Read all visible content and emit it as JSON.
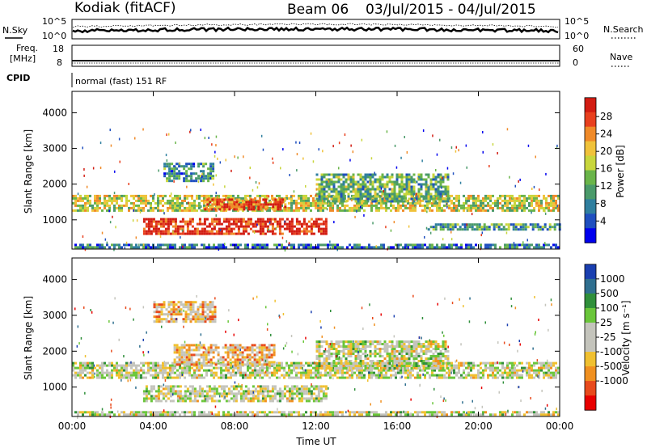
{
  "header": {
    "title": "Kodiak (fitACF)",
    "beam": "Beam 06",
    "date_range": "03/Jul/2015 - 04/Jul/2015"
  },
  "panels": {
    "nsky": {
      "label": "N.Sky",
      "ticks": [
        "10^5",
        "10^0"
      ]
    },
    "nsearch": {
      "label": "N.Search",
      "ticks": [
        "10^5",
        "10^0"
      ]
    },
    "freq": {
      "label_line1": "Freq.",
      "label_line2": "[MHz]",
      "ticks": [
        "18",
        "8"
      ]
    },
    "nave": {
      "label": "Nave",
      "ticks": [
        "60",
        "0"
      ]
    },
    "cpid": {
      "label": "CPID",
      "value": "normal (fast) 151 RF"
    }
  },
  "chart_data": [
    {
      "type": "heatmap",
      "name": "power",
      "title": "",
      "xlabel": "",
      "ylabel": "Slant Range [km]",
      "xticks": [
        "00:00",
        "04:00",
        "08:00",
        "12:00",
        "16:00",
        "20:00",
        "00:00"
      ],
      "xlim_hours": [
        0,
        24
      ],
      "yticks": [
        1000,
        2000,
        3000,
        4000
      ],
      "ylim": [
        180,
        4600
      ],
      "colorbar_label": "Power [dB]",
      "colorbar_ticks": [
        4,
        8,
        12,
        16,
        20,
        24,
        28
      ],
      "colorbar_colors": [
        "#0000ee",
        "#1f4fbf",
        "#2f7f9f",
        "#4a9a6a",
        "#6ab54a",
        "#c8d63c",
        "#f0c23a",
        "#f08a28",
        "#e8401e",
        "#d21c12"
      ],
      "bands": [
        {
          "x": [
            0,
            24
          ],
          "y": [
            1250,
            1700
          ],
          "level": 0.55
        },
        {
          "x": [
            6.5,
            10.5
          ],
          "y": [
            1300,
            1600
          ],
          "level": 0.85
        },
        {
          "x": [
            3.5,
            12.5
          ],
          "y": [
            600,
            1050
          ],
          "level": 0.95
        },
        {
          "x": [
            12,
            18.5
          ],
          "y": [
            1500,
            2300
          ],
          "level": 0.4
        },
        {
          "x": [
            17.5,
            24
          ],
          "y": [
            750,
            900
          ],
          "level": 0.35
        },
        {
          "x": [
            4.5,
            7
          ],
          "y": [
            2100,
            2600
          ],
          "level": 0.3
        },
        {
          "x": [
            0,
            24
          ],
          "y": [
            200,
            330
          ],
          "level": 0.25
        }
      ]
    },
    {
      "type": "heatmap",
      "name": "velocity",
      "title": "",
      "xlabel": "Time UT",
      "ylabel": "Slant Range [km]",
      "xticks": [
        "00:00",
        "04:00",
        "08:00",
        "12:00",
        "16:00",
        "20:00",
        "00:00"
      ],
      "xlim_hours": [
        0,
        24
      ],
      "yticks": [
        1000,
        2000,
        3000,
        4000
      ],
      "ylim": [
        180,
        4600
      ],
      "colorbar_label": "Velocity [m s⁻¹]",
      "colorbar_ticks": [
        1000,
        500,
        100,
        25,
        -25,
        -100,
        -500,
        -1000
      ],
      "colorbar_colors": [
        "#1a3fb0",
        "#2f6f8f",
        "#2f8f3a",
        "#6ac63a",
        "#c4c4bc",
        "#c4c4bc",
        "#f0c030",
        "#f09020",
        "#e84a1c",
        "#e80000"
      ],
      "bands": [
        {
          "x": [
            0,
            24
          ],
          "y": [
            1250,
            1700
          ],
          "level": 0.5
        },
        {
          "x": [
            3.5,
            12.5
          ],
          "y": [
            600,
            1050
          ],
          "level": 0.5
        },
        {
          "x": [
            12,
            18.5
          ],
          "y": [
            1500,
            2300
          ],
          "level": 0.5
        },
        {
          "x": [
            5,
            10
          ],
          "y": [
            1600,
            2200
          ],
          "level": 0.65
        },
        {
          "x": [
            4,
            7
          ],
          "y": [
            2800,
            3400
          ],
          "level": 0.65
        },
        {
          "x": [
            0,
            24
          ],
          "y": [
            200,
            330
          ],
          "level": 0.5
        }
      ]
    }
  ]
}
